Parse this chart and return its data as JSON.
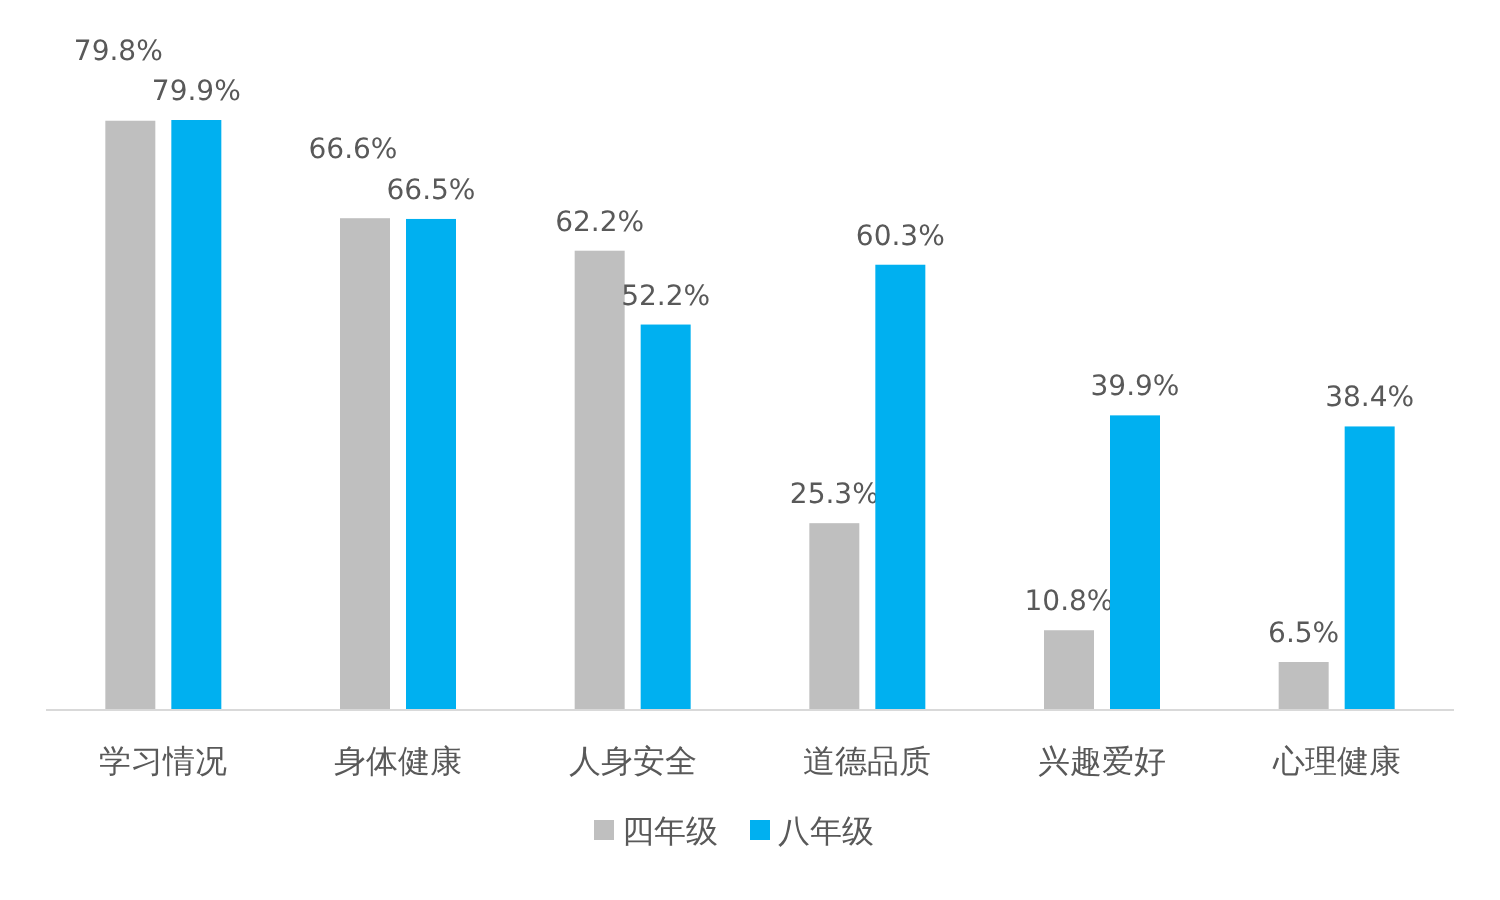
{
  "chart_data": {
    "type": "bar",
    "categories": [
      "学习情况",
      "身体健康",
      "人身安全",
      "道德品质",
      "兴趣爱好",
      "心理健康"
    ],
    "series": [
      {
        "name": "四年级",
        "color": "#bfbfbf",
        "values": [
          79.8,
          66.6,
          62.2,
          25.3,
          10.8,
          6.5
        ],
        "value_labels": [
          "79.8%",
          "66.6%",
          "62.2%",
          "25.3%",
          "10.8%",
          "6.5%"
        ]
      },
      {
        "name": "八年级",
        "color": "#00b0f0",
        "values": [
          79.9,
          66.5,
          52.2,
          60.3,
          39.9,
          38.4
        ],
        "value_labels": [
          "79.9%",
          "66.5%",
          "52.2%",
          "60.3%",
          "39.9%",
          "38.4%"
        ]
      }
    ],
    "legend": "bottom"
  }
}
